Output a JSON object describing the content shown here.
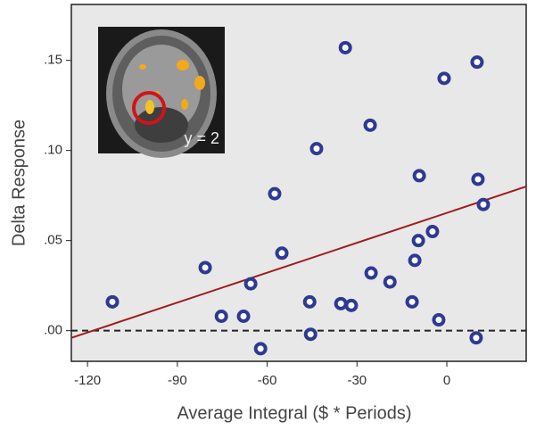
{
  "chart_data": {
    "type": "scatter",
    "x_label": "Average Integral ($ * Periods)",
    "y_label": "Delta Response",
    "inset_label": "y = 2",
    "color": "#2e3a92",
    "x": [
      -111.7,
      -80.7,
      -75.3,
      -67.9,
      -65.5,
      -62.2,
      -57.5,
      -55.1,
      -45.8,
      -45.5,
      -43.5,
      -35.4,
      -33.9,
      -31.9,
      -25.6,
      -25.3,
      -19.0,
      -11.6,
      -10.7,
      -9.5,
      -9.2,
      -4.8,
      -2.7,
      -0.9,
      10.1,
      10.4,
      9.8,
      12.2
    ],
    "values": [
      0.016,
      0.035,
      0.008,
      0.008,
      0.026,
      -0.01,
      0.076,
      0.043,
      0.016,
      -0.002,
      0.101,
      0.015,
      0.157,
      0.014,
      0.114,
      0.032,
      0.027,
      0.016,
      0.039,
      0.05,
      0.086,
      0.055,
      0.006,
      0.14,
      0.149,
      0.084,
      -0.004,
      0.07
    ],
    "fit_line": {
      "color": "#a01c1c",
      "x": [
        -125.4,
        26.5
      ],
      "y": [
        -0.004,
        0.08
      ]
    },
    "reference_line": 0,
    "xlim": [
      -125.4,
      26.5
    ],
    "ylim": [
      -0.017,
      0.181
    ],
    "xticks": [
      -120,
      -90,
      -60,
      -30,
      0
    ],
    "yticks": [
      {
        "value": 0,
        "label": ".00"
      },
      {
        "value": 0.05,
        "label": ".05"
      },
      {
        "value": 0.1,
        "label": ".10"
      },
      {
        "value": 0.15,
        "label": ".15"
      }
    ],
    "grid": false
  }
}
